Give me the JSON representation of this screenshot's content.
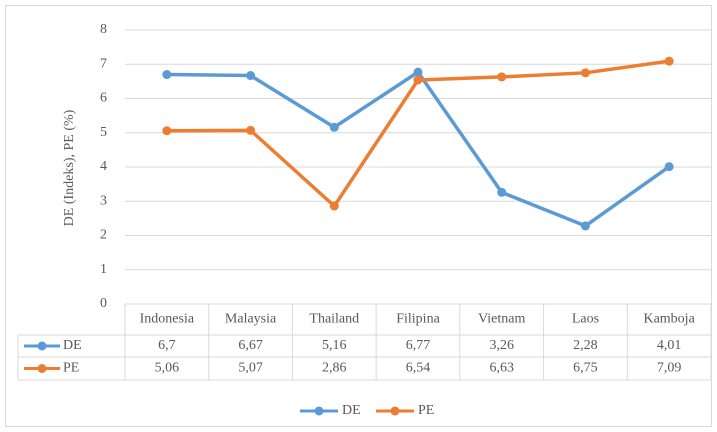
{
  "chart_data": {
    "type": "line",
    "y_label": "DE (Indeks), PE (%)",
    "categories": [
      "Indonesia",
      "Malaysia",
      "Thailand",
      "Filipina",
      "Vietnam",
      "Laos",
      "Kamboja"
    ],
    "series": [
      {
        "name": "DE",
        "color": "#5b9bd5",
        "values": [
          6.7,
          6.67,
          5.16,
          6.77,
          3.26,
          2.28,
          4.01
        ],
        "value_labels": [
          "6,7",
          "6,67",
          "5,16",
          "6,77",
          "3,26",
          "2,28",
          "4,01"
        ]
      },
      {
        "name": "PE",
        "color": "#ed7d31",
        "values": [
          5.06,
          5.07,
          2.86,
          6.54,
          6.63,
          6.75,
          7.09
        ],
        "value_labels": [
          "5,06",
          "5,07",
          "2,86",
          "6,54",
          "6,63",
          "6,75",
          "7,09"
        ]
      }
    ],
    "ylim": [
      0,
      8
    ],
    "yticks": [
      0,
      1,
      2,
      3,
      4,
      5,
      6,
      7,
      8
    ],
    "grid": true,
    "legend": "bottom"
  }
}
